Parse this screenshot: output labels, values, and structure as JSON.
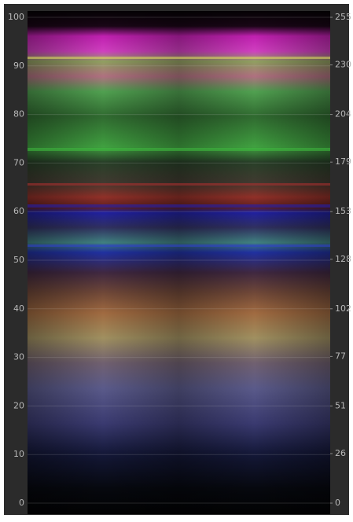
{
  "chart_data": {
    "type": "image",
    "ylim": [
      0,
      100
    ],
    "yticks": [
      0,
      10,
      20,
      30,
      40,
      50,
      60,
      70,
      80,
      90,
      100
    ],
    "y2lim": [
      0,
      255
    ],
    "y2ticks": [
      0,
      26,
      51,
      77,
      102,
      128,
      153,
      179,
      204,
      230,
      255
    ],
    "grid": true
  }
}
